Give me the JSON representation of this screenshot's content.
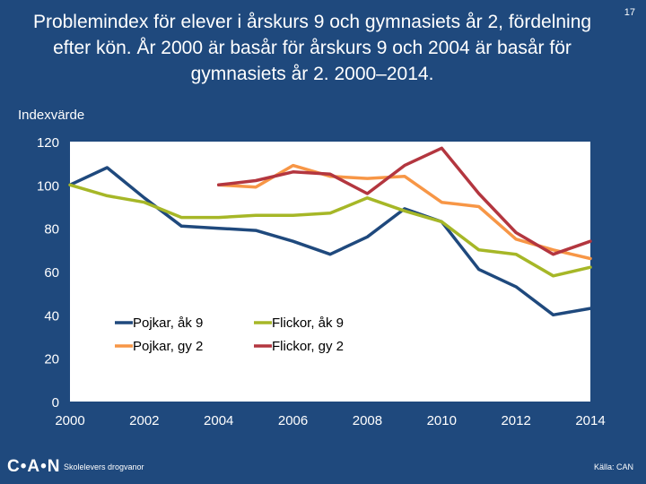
{
  "page": {
    "title": "Problemindex för elever i årskurs 9 och gymnasiets år 2, fördelning efter kön. År 2000 är basår för årskurs 9 och 2004 är basår för gymnasiets år 2. 2000–2014.",
    "page_number": "17",
    "logo": "C•A•N",
    "footer_left": "Skolelevers drogvanor",
    "footer_right": "Källa: CAN"
  },
  "colors": {
    "background": "#1f497d",
    "plot_area": "#ffffff",
    "text": "#ffffff"
  },
  "chart_data": {
    "type": "line",
    "title": "Problemindex för elever i årskurs 9 och gymnasiets år 2, fördelning efter kön. År 2000 är basår för årskurs 9 och 2004 är basår för gymnasiets år 2. 2000–2014.",
    "xlabel": "",
    "ylabel": "Indexvärde",
    "xlim": [
      2000,
      2014
    ],
    "ylim": [
      0,
      120
    ],
    "x_ticks": [
      "2000",
      "2002",
      "2004",
      "2006",
      "2008",
      "2010",
      "2012",
      "2014"
    ],
    "y_ticks": [
      "0",
      "20",
      "40",
      "60",
      "80",
      "100",
      "120"
    ],
    "grid": false,
    "legend_position": "lower-left inside",
    "series": [
      {
        "name": "Pojkar, åk 9",
        "color": "#1f497d",
        "x": [
          2000,
          2001,
          2002,
          2003,
          2004,
          2005,
          2006,
          2007,
          2008,
          2009,
          2010,
          2011,
          2012,
          2013,
          2014
        ],
        "values": [
          100,
          108,
          94,
          81,
          80,
          79,
          74,
          68,
          76,
          89,
          83,
          61,
          53,
          40,
          43
        ]
      },
      {
        "name": "Flickor, åk 9",
        "color": "#a6b727",
        "x": [
          2000,
          2001,
          2002,
          2003,
          2004,
          2005,
          2006,
          2007,
          2008,
          2009,
          2010,
          2011,
          2012,
          2013,
          2014
        ],
        "values": [
          100,
          95,
          92,
          85,
          85,
          86,
          86,
          87,
          94,
          88,
          83,
          70,
          68,
          58,
          62
        ]
      },
      {
        "name": "Pojkar, gy 2",
        "color": "#f79646",
        "x": [
          2004,
          2005,
          2006,
          2007,
          2008,
          2009,
          2010,
          2011,
          2012,
          2013,
          2014
        ],
        "values": [
          100,
          99,
          109,
          104,
          103,
          104,
          92,
          90,
          75,
          70,
          66
        ]
      },
      {
        "name": "Flickor, gy 2",
        "color": "#b3363f",
        "x": [
          2004,
          2005,
          2006,
          2007,
          2008,
          2009,
          2010,
          2011,
          2012,
          2013,
          2014
        ],
        "values": [
          100,
          102,
          106,
          105,
          96,
          109,
          117,
          96,
          78,
          68,
          74
        ]
      }
    ]
  }
}
